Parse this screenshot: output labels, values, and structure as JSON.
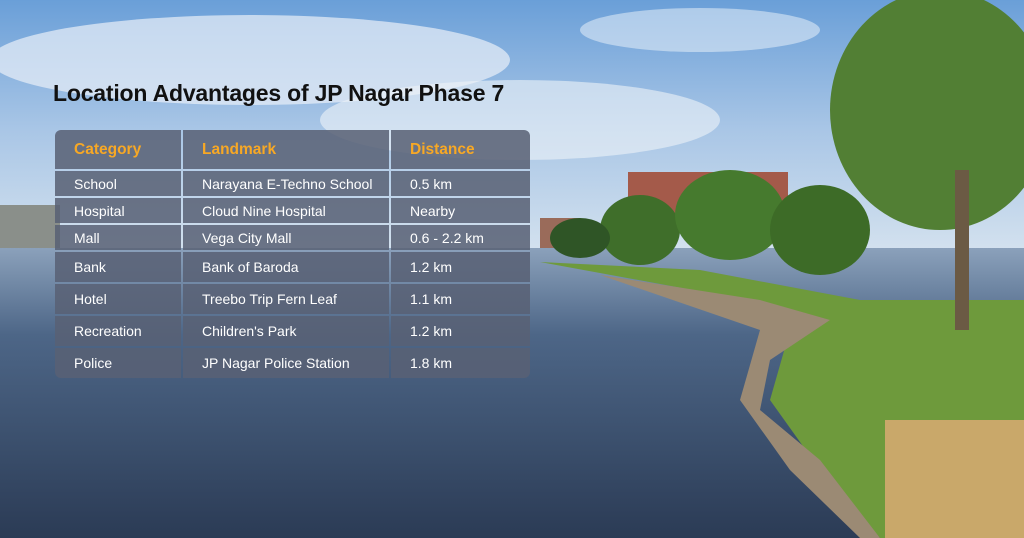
{
  "header": {
    "title": "Location Advantages of JP Nagar Phase 7"
  },
  "table": {
    "columns": [
      "Category",
      "Landmark",
      "Distance"
    ],
    "rows": [
      [
        "School",
        "Narayana E-Techno School",
        "0.5 km"
      ],
      [
        "Hospital",
        "Cloud Nine Hospital",
        "Nearby"
      ],
      [
        "Mall",
        "Vega City Mall",
        "0.6 - 2.2 km"
      ],
      [
        "Bank",
        "Bank of Baroda",
        "1.2 km"
      ],
      [
        "Hotel",
        "Treebo Trip Fern Leaf",
        "1.1 km"
      ],
      [
        "Recreation",
        "Children's Park",
        "1.2 km"
      ],
      [
        "Police",
        "JP Nagar Police Station",
        "1.8 km"
      ]
    ]
  }
}
